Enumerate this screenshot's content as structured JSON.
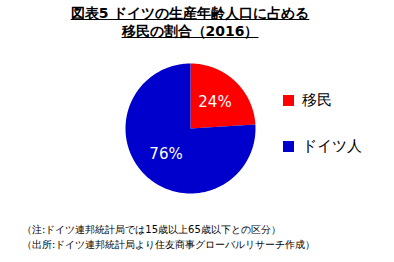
{
  "chart_data": {
    "type": "pie",
    "title": "図表5  ドイツの生産年齢人口に占める\n移民の割合（2016）",
    "categories": [
      "移民",
      "ドイツ人"
    ],
    "values": [
      24,
      76
    ],
    "value_labels": [
      "24%",
      "76%"
    ],
    "colors": [
      "#ff0000",
      "#0000cc"
    ],
    "data_labels": true,
    "legend": "right",
    "annotations": [
      "（注:ドイツ連邦統計局では15歳以上65歳以下との区分）",
      "（出所:ドイツ連邦統計局より住友商事グローバルリサーチ作成）"
    ]
  }
}
